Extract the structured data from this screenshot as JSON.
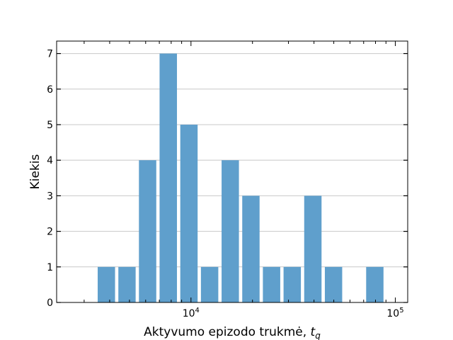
{
  "chart_data": {
    "type": "bar",
    "title": "",
    "xlabel": "Aktyvumo epizodo trukmė, ",
    "xlabel_math": "t",
    "xlabel_math_sub": "q",
    "ylabel": "Kiekis",
    "x_scale": "log",
    "xlim": [
      2200,
      115000
    ],
    "ylim": [
      0,
      7.35
    ],
    "grid": "horizontal",
    "bar_color": "#5f9fcc",
    "x_tick_labels": [
      {
        "value": 10000,
        "base": "10",
        "exp": "4"
      },
      {
        "value": 100000,
        "base": "10",
        "exp": "5"
      }
    ],
    "y_ticks": [
      0,
      1,
      2,
      3,
      4,
      5,
      6,
      7
    ],
    "bins": [
      {
        "from": 3430,
        "to": 4330,
        "value": 1
      },
      {
        "from": 4330,
        "to": 5460,
        "value": 1
      },
      {
        "from": 5460,
        "to": 6890,
        "value": 4
      },
      {
        "from": 6890,
        "to": 8700,
        "value": 7
      },
      {
        "from": 8700,
        "to": 10980,
        "value": 5
      },
      {
        "from": 10980,
        "to": 13860,
        "value": 1
      },
      {
        "from": 13860,
        "to": 17490,
        "value": 4
      },
      {
        "from": 17490,
        "to": 22070,
        "value": 3
      },
      {
        "from": 22070,
        "to": 27860,
        "value": 1
      },
      {
        "from": 27860,
        "to": 35160,
        "value": 1
      },
      {
        "from": 35160,
        "to": 44370,
        "value": 3
      },
      {
        "from": 44370,
        "to": 56000,
        "value": 1
      },
      {
        "from": 56000,
        "to": 70670,
        "value": 0
      },
      {
        "from": 70670,
        "to": 89190,
        "value": 1
      }
    ]
  }
}
